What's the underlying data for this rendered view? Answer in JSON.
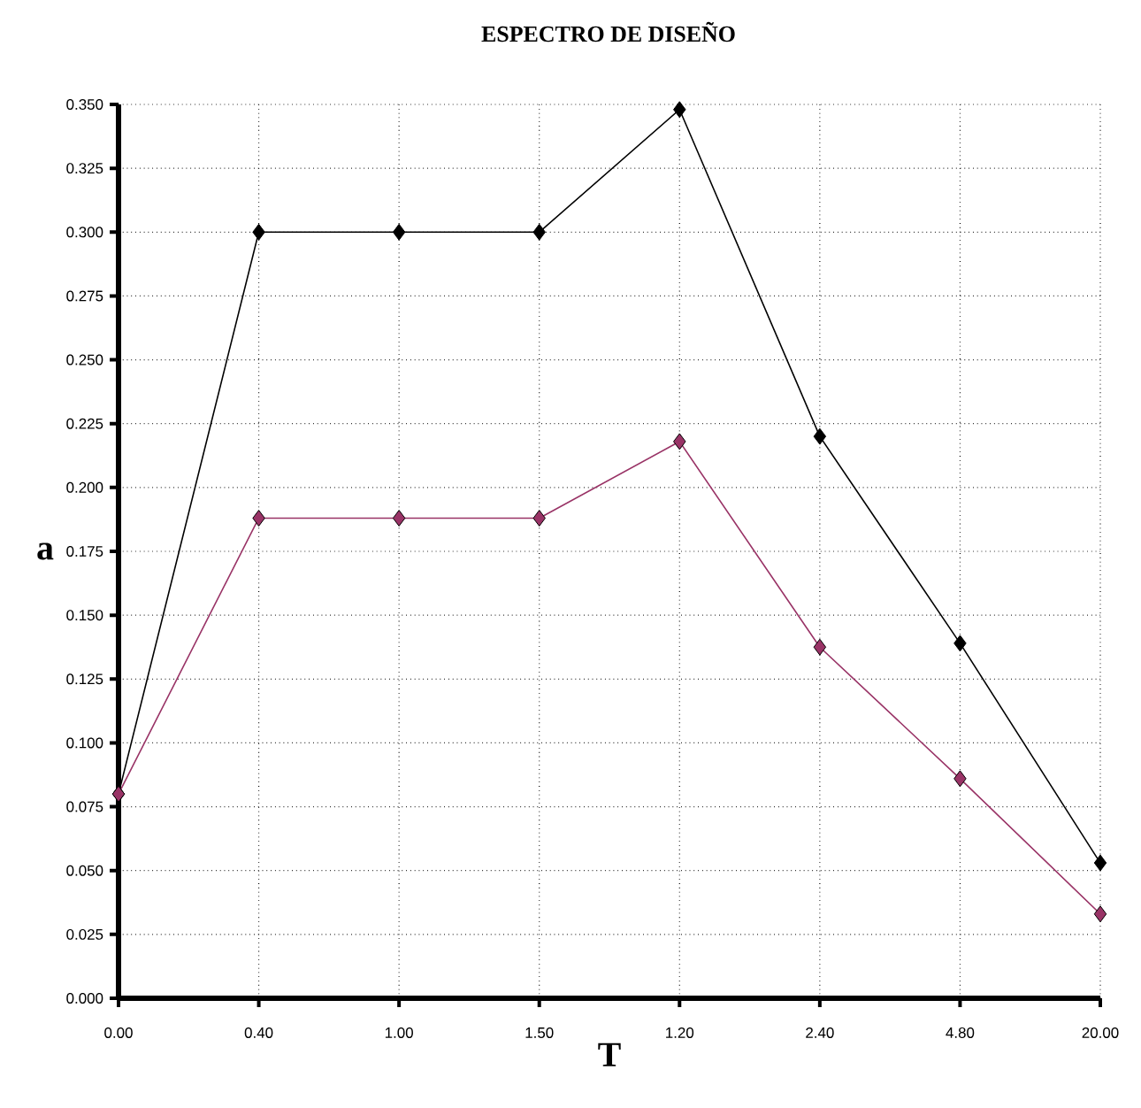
{
  "chart_data": {
    "type": "line",
    "title": "ESPECTRO DE DISEÑO",
    "xlabel": "T",
    "ylabel": "a",
    "categories": [
      "0.00",
      "0.40",
      "1.00",
      "1.50",
      "1.20",
      "2.40",
      "4.80",
      "20.00"
    ],
    "series": [
      {
        "color": "#000000",
        "values": [
          0.08,
          0.3,
          0.3,
          0.3,
          0.348,
          0.22,
          0.139,
          0.053
        ]
      },
      {
        "color": "#993366",
        "values": [
          0.08,
          0.188,
          0.188,
          0.188,
          0.218,
          0.1375,
          0.086,
          0.033
        ]
      }
    ],
    "ylim": [
      0,
      0.35
    ],
    "yticks": [
      {
        "value": 0,
        "label": "0.000"
      },
      {
        "value": 0.025,
        "label": "0.025"
      },
      {
        "value": 0.05,
        "label": "0.050"
      },
      {
        "value": 0.075,
        "label": "0.075"
      },
      {
        "value": 0.1,
        "label": "0.100"
      },
      {
        "value": 0.125,
        "label": "0.125"
      },
      {
        "value": 0.15,
        "label": "0.150"
      },
      {
        "value": 0.175,
        "label": "0.175"
      },
      {
        "value": 0.2,
        "label": "0.200"
      },
      {
        "value": 0.225,
        "label": "0.225"
      },
      {
        "value": 0.25,
        "label": "0.250"
      },
      {
        "value": 0.275,
        "label": "0.275"
      },
      {
        "value": 0.3,
        "label": "0.300"
      },
      {
        "value": 0.325,
        "label": "0.325"
      },
      {
        "value": 0.35,
        "label": "0.350"
      }
    ],
    "grid": true,
    "marker": "diamond",
    "line_style": "solid"
  }
}
